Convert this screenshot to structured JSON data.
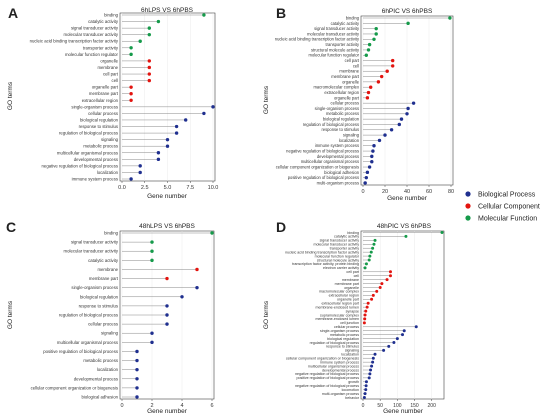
{
  "legend": {
    "items": [
      {
        "label": "Biological Process",
        "color": "#1f2f8f"
      },
      {
        "label": "Cellular Component",
        "color": "#e3140f"
      },
      {
        "label": "Molecular Function",
        "color": "#159a4a"
      }
    ]
  },
  "chart_data": [
    {
      "panel": "A",
      "type": "lollipop",
      "title": "6hLPS VS 6hPBS",
      "xlabel": "Gene number",
      "ylabel": "GO terms",
      "xlim": [
        0,
        10
      ],
      "xticks": [
        0,
        2.5,
        5,
        7.5,
        10
      ],
      "xtick_labels": [
        "0.0",
        "2.5",
        "5.0",
        "7.5",
        "10.0"
      ],
      "series": [
        {
          "name": "Molecular Function",
          "color": "#159a4a",
          "categories": [
            "binding",
            "catalytic activity",
            "signal transducer activity",
            "molecular transducer activity",
            "nucleic acid binding transcription factor activity",
            "transporter activity",
            "molecular function regulator"
          ],
          "values": [
            9,
            4,
            3,
            3,
            2,
            1,
            1
          ]
        },
        {
          "name": "Cellular Component",
          "color": "#e3140f",
          "categories": [
            "organelle",
            "membrane",
            "cell part",
            "cell",
            "organelle part",
            "membrane part",
            "extracellular region"
          ],
          "values": [
            3,
            3,
            3,
            3,
            1,
            1,
            1
          ]
        },
        {
          "name": "Biological Process",
          "color": "#1f2f8f",
          "categories": [
            "single-organism process",
            "cellular process",
            "biological regulation",
            "response to stimulus",
            "regulation of biological process",
            "signaling",
            "metabolic process",
            "multicellular organismal process",
            "developmental process",
            "negative regulation of biological process",
            "localization",
            "immune system process"
          ],
          "values": [
            10,
            9,
            7,
            6,
            6,
            5,
            5,
            4,
            4,
            2,
            2,
            1
          ]
        }
      ]
    },
    {
      "panel": "B",
      "type": "lollipop",
      "title": "6hPIC VS 6hPBS",
      "xlabel": "Gene number",
      "ylabel": "GO terms",
      "xlim": [
        0,
        80
      ],
      "xticks": [
        0,
        20,
        40,
        60,
        80
      ],
      "xtick_labels": [
        "0",
        "20",
        "40",
        "60",
        "80"
      ],
      "series": [
        {
          "name": "Molecular Function",
          "color": "#159a4a",
          "categories": [
            "binding",
            "catalytic activity",
            "signal transducer activity",
            "molecular transducer activity",
            "nucleic acid binding transcription factor activity",
            "transporter activity",
            "structural molecule activity",
            "molecular function regulator"
          ],
          "values": [
            79,
            41,
            12,
            12,
            10,
            6,
            5,
            3
          ]
        },
        {
          "name": "Cellular Component",
          "color": "#e3140f",
          "categories": [
            "cell part",
            "cell",
            "membrane",
            "membrane part",
            "organelle",
            "macromolecular complex",
            "extracellular region",
            "organelle part"
          ],
          "values": [
            27,
            27,
            22,
            17,
            14,
            7,
            5,
            4
          ]
        },
        {
          "name": "Biological Process",
          "color": "#1f2f8f",
          "categories": [
            "cellular process",
            "single-organism process",
            "metabolic process",
            "biological regulation",
            "regulation of biological process",
            "response to stimulus",
            "signaling",
            "localization",
            "immune system process",
            "negative regulation of biological process",
            "developmental process",
            "multicellular organismal process",
            "cellular component organization or biogenesis",
            "biological adhesion",
            "positive regulation of biological process",
            "multi-organism process"
          ],
          "values": [
            46,
            41,
            40,
            35,
            33,
            26,
            20,
            15,
            10,
            9,
            8,
            8,
            6,
            4,
            3,
            2
          ]
        }
      ]
    },
    {
      "panel": "C",
      "type": "lollipop",
      "title": "48hLPS VS 6hPBS",
      "xlabel": "Gene number",
      "ylabel": "GO terms",
      "xlim": [
        0,
        6
      ],
      "xticks": [
        0,
        2,
        4,
        6
      ],
      "xtick_labels": [
        "0",
        "2",
        "4",
        "6"
      ],
      "series": [
        {
          "name": "Molecular Function",
          "color": "#159a4a",
          "categories": [
            "binding",
            "signal transducer activity",
            "molecular transducer activity",
            "catalytic activity"
          ],
          "values": [
            6,
            2,
            2,
            2
          ]
        },
        {
          "name": "Cellular Component",
          "color": "#e3140f",
          "categories": [
            "membrane",
            "membrane part"
          ],
          "values": [
            5,
            3
          ]
        },
        {
          "name": "Biological Process",
          "color": "#1f2f8f",
          "categories": [
            "single-organism process",
            "biological regulation",
            "response to stimulus",
            "regulation of biological process",
            "cellular process",
            "signaling",
            "multicellular organismal process",
            "positive regulation of biological process",
            "metabolic process",
            "localization",
            "developmental process",
            "cellular component organization or biogenesis",
            "biological adhesion"
          ],
          "values": [
            5,
            4,
            3,
            3,
            3,
            2,
            2,
            1,
            1,
            1,
            1,
            1,
            1
          ]
        }
      ]
    },
    {
      "panel": "D",
      "type": "lollipop",
      "title": "48hPIC VS 6hPBS",
      "xlabel": "Gene number",
      "ylabel": "GO terms",
      "xlim": [
        0,
        230
      ],
      "xticks": [
        0,
        50,
        100,
        150,
        200
      ],
      "xtick_labels": [
        "0",
        "50",
        "100",
        "150",
        "200"
      ],
      "series": [
        {
          "name": "Molecular Function",
          "color": "#159a4a",
          "categories": [
            "binding",
            "catalytic activity",
            "signal transducer activity",
            "molecular transducer activity",
            "transporter activity",
            "nucleic acid binding transcription factor activity",
            "molecular function regulator",
            "structural molecule activity",
            "transcription factor activity, protein binding",
            "electron carrier activity"
          ],
          "values": [
            230,
            125,
            35,
            32,
            28,
            24,
            20,
            18,
            10,
            6
          ]
        },
        {
          "name": "Cellular Component",
          "color": "#e3140f",
          "categories": [
            "cell part",
            "cell",
            "membrane",
            "membrane part",
            "organelle",
            "macromolecular complex",
            "extracellular region",
            "organelle part",
            "extracellular region part",
            "membrane-enclosed lumen",
            "synapse",
            "supramolecular complex",
            "membrane-enclosed lumen",
            "cell junction"
          ],
          "values": [
            80,
            80,
            70,
            55,
            50,
            40,
            30,
            25,
            15,
            12,
            8,
            6,
            5,
            4
          ]
        },
        {
          "name": "Biological Process",
          "color": "#1f2f8f",
          "categories": [
            "cellular process",
            "single-organism process",
            "metabolic process",
            "biological regulation",
            "regulation of biological process",
            "response to stimulus",
            "signaling",
            "localization",
            "cellular component organization or biogenesis",
            "immune system process",
            "multicellular organismal process",
            "developmental process",
            "negative regulation of biological process",
            "positive regulation of biological process",
            "growth",
            "negative regulation of biological process",
            "locomotion",
            "multi-organism process",
            "behavior"
          ],
          "values": [
            155,
            120,
            115,
            100,
            90,
            75,
            60,
            35,
            30,
            28,
            25,
            22,
            20,
            18,
            10,
            9,
            8,
            6,
            4
          ]
        }
      ]
    }
  ]
}
